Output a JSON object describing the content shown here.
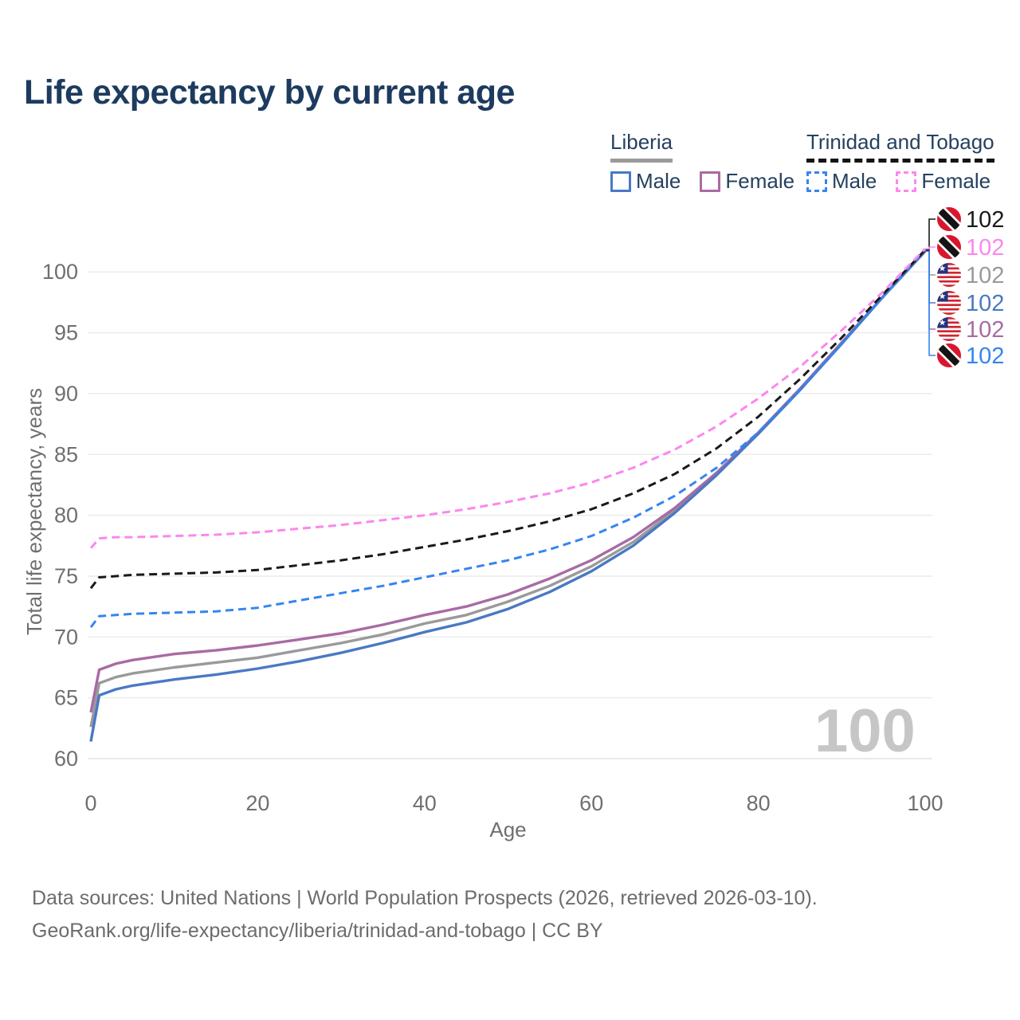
{
  "title": "Life expectancy by current age",
  "legend": {
    "groups": [
      {
        "name": "Liberia",
        "line_style": "solid",
        "underline_color": "#9a9a9a",
        "items": [
          {
            "label": "Male",
            "color": "#4a79c4"
          },
          {
            "label": "Female",
            "color": "#a86ba4"
          }
        ]
      },
      {
        "name": "Trinidad and Tobago",
        "line_style": "dashed",
        "underline_color": "#141414",
        "items": [
          {
            "label": "Male",
            "color": "#3585f0"
          },
          {
            "label": "Female",
            "color": "#fb87ee"
          }
        ]
      }
    ]
  },
  "footer": {
    "line1": "Data sources: United Nations | World Population Prospects (2026, retrieved 2026-03-10).",
    "line2": "GeoRank.org/life-expectancy/liberia/trinidad-and-tobago | CC BY"
  },
  "chart_data": {
    "type": "line",
    "title": "Life expectancy by current age",
    "xlabel": "Age",
    "ylabel": "Total life expectancy, years",
    "xlim": [
      0,
      100
    ],
    "ylim": [
      60,
      102
    ],
    "xticks": [
      0,
      20,
      40,
      60,
      80,
      100
    ],
    "yticks": [
      60,
      65,
      70,
      75,
      80,
      85,
      90,
      95,
      100
    ],
    "grid": "horizontal",
    "age_indicator": "100",
    "x": [
      0,
      1,
      3,
      5,
      10,
      15,
      20,
      25,
      30,
      35,
      40,
      45,
      50,
      55,
      60,
      65,
      70,
      75,
      80,
      85,
      90,
      95,
      100
    ],
    "series": [
      {
        "name": "Liberia",
        "country": "Liberia",
        "sex": "both",
        "color": "#9a9a9a",
        "dash": false,
        "flag": "liberia",
        "end_label": "102",
        "label_color": "#9a9a9a",
        "label_row": 2,
        "values": [
          62.6,
          66.2,
          66.7,
          67.0,
          67.5,
          67.9,
          68.3,
          68.9,
          69.5,
          70.2,
          71.1,
          71.8,
          72.9,
          74.2,
          75.8,
          77.8,
          80.4,
          83.4,
          86.7,
          90.3,
          94.1,
          98.0,
          101.7
        ]
      },
      {
        "name": "Liberia Female",
        "country": "Liberia",
        "sex": "female",
        "color": "#a86ba4",
        "dash": false,
        "flag": "liberia",
        "end_label": "102",
        "label_color": "#a86ba4",
        "label_row": 4,
        "values": [
          63.8,
          67.3,
          67.8,
          68.1,
          68.6,
          68.9,
          69.3,
          69.8,
          70.3,
          71.0,
          71.8,
          72.5,
          73.5,
          74.8,
          76.3,
          78.2,
          80.6,
          83.5,
          86.8,
          90.4,
          94.2,
          98.0,
          101.7
        ]
      },
      {
        "name": "Liberia Male",
        "country": "Liberia",
        "sex": "male",
        "color": "#4a79c4",
        "dash": false,
        "flag": "liberia",
        "end_label": "102",
        "label_color": "#4a79c4",
        "label_row": 3,
        "values": [
          61.4,
          65.2,
          65.7,
          66.0,
          66.5,
          66.9,
          67.4,
          68.0,
          68.7,
          69.5,
          70.4,
          71.2,
          72.3,
          73.7,
          75.4,
          77.5,
          80.2,
          83.3,
          86.7,
          90.3,
          94.1,
          98.0,
          101.7
        ]
      },
      {
        "name": "Trinidad and Tobago Male",
        "country": "Trinidad and Tobago",
        "sex": "male",
        "color": "#3585f0",
        "dash": true,
        "flag": "trinidad-and-tobago",
        "end_label": "102",
        "label_color": "#3585f0",
        "label_row": 5,
        "values": [
          70.8,
          71.7,
          71.8,
          71.9,
          72.0,
          72.1,
          72.4,
          73.0,
          73.6,
          74.2,
          74.9,
          75.6,
          76.3,
          77.2,
          78.3,
          79.8,
          81.6,
          83.9,
          86.8,
          90.3,
          94.1,
          98.0,
          101.8
        ]
      },
      {
        "name": "Trinidad and Tobago",
        "country": "Trinidad and Tobago",
        "sex": "both",
        "color": "#1a1a1a",
        "dash": true,
        "flag": "trinidad-and-tobago",
        "end_label": "102",
        "label_color": "#1a1a1a",
        "label_row": 0,
        "values": [
          74.0,
          74.9,
          75.0,
          75.1,
          75.2,
          75.3,
          75.5,
          75.9,
          76.3,
          76.8,
          77.4,
          78.0,
          78.7,
          79.5,
          80.5,
          81.8,
          83.4,
          85.5,
          88.1,
          91.2,
          94.6,
          98.2,
          101.8
        ]
      },
      {
        "name": "Trinidad and Tobago Female",
        "country": "Trinidad and Tobago",
        "sex": "female",
        "color": "#fb87ee",
        "dash": true,
        "flag": "trinidad-and-tobago",
        "end_label": "102",
        "label_color": "#fb87ee",
        "label_row": 1,
        "values": [
          77.3,
          78.1,
          78.2,
          78.2,
          78.3,
          78.4,
          78.6,
          78.9,
          79.2,
          79.6,
          80.0,
          80.5,
          81.1,
          81.8,
          82.7,
          83.9,
          85.4,
          87.3,
          89.6,
          92.2,
          95.2,
          98.4,
          101.9
        ]
      }
    ]
  }
}
